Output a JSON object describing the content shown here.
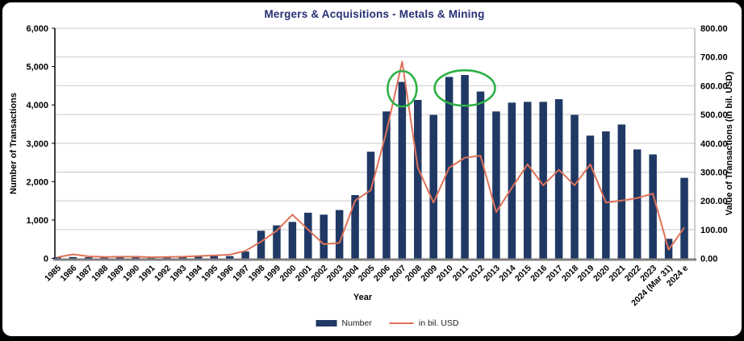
{
  "title": "Mergers & Acquisitions - Metals & Mining",
  "axes": {
    "x_title": "Year",
    "left_title": "Number of Transactions",
    "right_title": "Value of Transactions (in bil. USD)",
    "left_tick_labels": [
      "0",
      "1,000",
      "2,000",
      "3,000",
      "4,000",
      "5,000",
      "6,000"
    ],
    "right_tick_labels": [
      "0.00",
      "100.00",
      "200.00",
      "300.00",
      "400.00",
      "500.00",
      "600.00",
      "700.00",
      "800.00"
    ]
  },
  "legend": {
    "bar_label": "Number",
    "line_label": "in bil. USD"
  },
  "colors": {
    "bar": "#1F3864",
    "line": "#DF7258",
    "title": "#272E74",
    "annotation": "#2EB045",
    "grid": "#C9C9C9",
    "baseline": "#808080",
    "axis": "#000000",
    "right_axis_line": "#999999"
  },
  "annotations": [
    {
      "shape": "ellipse",
      "around_categories": [
        "2007"
      ],
      "note": "circle highlighting 2007 peak bar"
    },
    {
      "shape": "ellipse",
      "around_categories": [
        "2010",
        "2011",
        "2012"
      ],
      "note": "ellipse highlighting 2010-2012 bars"
    }
  ],
  "chart_data": {
    "type": "bar",
    "title": "Mergers & Acquisitions - Metals & Mining",
    "xlabel": "Year",
    "ylabel_left": "Number of Transactions",
    "ylabel_right": "Value of Transactions (in bil. USD)",
    "ylim_left": [
      0,
      6000
    ],
    "ylim_right": [
      0,
      800
    ],
    "grid": "horizontal gridlines every 100 (right axis) / 750 (left axis)",
    "legend_position": "bottom-center",
    "categories": [
      "1985",
      "1986",
      "1987",
      "1988",
      "1989",
      "1990",
      "1991",
      "1992",
      "1993",
      "1994",
      "1995",
      "1996",
      "1997",
      "1998",
      "1999",
      "2000",
      "2001",
      "2002",
      "2003",
      "2004",
      "2005",
      "2006",
      "2007",
      "2008",
      "2009",
      "2010",
      "2011",
      "2012",
      "2013",
      "2014",
      "2015",
      "2016",
      "2017",
      "2018",
      "2019",
      "2020",
      "2021",
      "2022",
      "2023",
      "2024 (Mar 31)",
      "2024 e"
    ],
    "series": [
      {
        "name": "Number",
        "type": "bar",
        "axis": "left",
        "values": [
          30,
          35,
          30,
          25,
          30,
          30,
          25,
          30,
          35,
          50,
          65,
          60,
          180,
          720,
          860,
          950,
          1190,
          1140,
          1260,
          1650,
          2780,
          3830,
          4600,
          4130,
          3740,
          4730,
          4780,
          4350,
          3830,
          4060,
          4080,
          4080,
          4150,
          3740,
          3200,
          3310,
          3490,
          2840,
          2710,
          510,
          2100
        ]
      },
      {
        "name": "in bil. USD",
        "type": "line",
        "axis": "right",
        "values": [
          4,
          14,
          7,
          5,
          6,
          6,
          4,
          5,
          6,
          8,
          10,
          13,
          26,
          58,
          96,
          152,
          100,
          49,
          54,
          201,
          237,
          440,
          684,
          315,
          194,
          315,
          350,
          357,
          161,
          245,
          327,
          254,
          308,
          254,
          327,
          194,
          201,
          210,
          225,
          30,
          107
        ]
      }
    ]
  }
}
